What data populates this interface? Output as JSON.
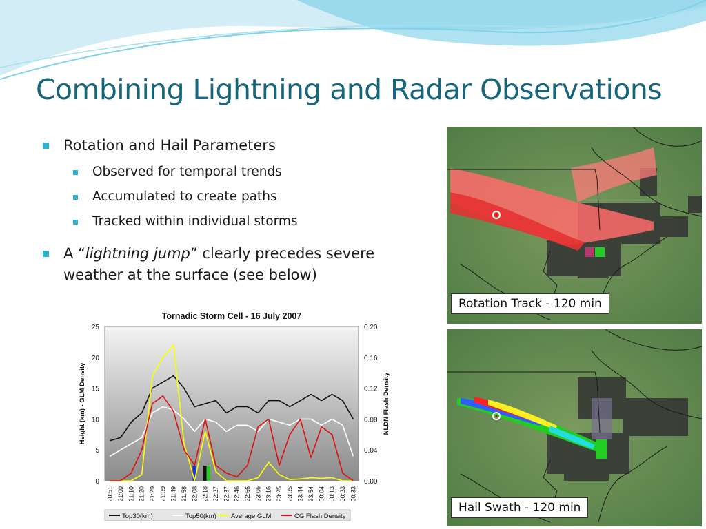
{
  "slide": {
    "title": "Combining Lightning and Radar Observations"
  },
  "bullets": {
    "b1": "Rotation and Hail Parameters",
    "b1_sub": [
      "Observed for temporal trends",
      "Accumulated to create paths",
      "Tracked within individual storms"
    ],
    "b2_prefix": "A “",
    "b2_italic": "lightning jump",
    "b2_suffix": "” clearly precedes severe weather at the surface (see below)"
  },
  "images": {
    "rotation_caption": "Rotation Track - 120 min",
    "hail_caption": "Hail Swath - 120 min"
  },
  "colors": {
    "title": "#17657a",
    "bullet": "#2ab2cf",
    "wave_light": "#bfe6f2",
    "wave_mid": "#6ccbe3",
    "map_green": "#5f8a4a"
  },
  "chart_data": {
    "type": "line",
    "title": "Tornadic Storm Cell - 16 July 2007",
    "ylabel_left": "Height (km) - GLM Density",
    "ylabel_right": "NLDN Flash Density",
    "ylim_left": [
      0,
      25
    ],
    "ylim_right": [
      0,
      0.2
    ],
    "yticks_left": [
      "0",
      "5",
      "10",
      "15",
      "20",
      "25"
    ],
    "yticks_right": [
      "0.00",
      "0.04",
      "0.08",
      "0.12",
      "0.16",
      "0.20"
    ],
    "categories": [
      "20:51",
      "21:00",
      "21:10",
      "21:20",
      "21:29",
      "21:39",
      "21:49",
      "21:58",
      "22:08",
      "22:18",
      "22:27",
      "22:37",
      "22:46",
      "22:56",
      "23:06",
      "23:16",
      "23:25",
      "23:35",
      "23:44",
      "23:54",
      "00:04",
      "00:13",
      "00:23",
      "00:33"
    ],
    "legend_position": "bottom",
    "series": [
      {
        "name": "Top30(km)",
        "color": "#111111",
        "axis": "left",
        "values": [
          6.5,
          7,
          9.5,
          11,
          15,
          16,
          17,
          15,
          12,
          12.5,
          13,
          11,
          12,
          12,
          11,
          13,
          13,
          12,
          13,
          14,
          13,
          14,
          13,
          10
        ]
      },
      {
        "name": "Top50(km)",
        "color": "#ffffff",
        "axis": "left",
        "values": [
          4,
          5,
          6,
          7,
          11,
          12,
          11.5,
          10,
          8,
          10,
          9.5,
          8,
          9,
          9,
          8,
          10,
          9.5,
          9,
          10,
          10,
          9,
          10,
          9,
          4
        ]
      },
      {
        "name": "Average GLM",
        "color": "#ffff00",
        "axis": "left",
        "values": [
          0,
          0,
          0,
          1,
          17,
          20,
          22,
          6,
          0,
          8,
          1.5,
          0,
          0,
          0,
          0.5,
          3,
          1,
          0.2,
          0.3,
          0.5,
          0.4,
          0.5,
          0,
          0
        ]
      },
      {
        "name": "CG Flash Density",
        "color": "#dd1111",
        "axis": "right",
        "values": [
          0,
          0,
          0.01,
          0.04,
          0.1,
          0.11,
          0.09,
          0.04,
          0.02,
          0.08,
          0.02,
          0.01,
          0.005,
          0.02,
          0.07,
          0.08,
          0.02,
          0.06,
          0.08,
          0.03,
          0.07,
          0.06,
          0.01,
          0
        ]
      }
    ],
    "markers": [
      {
        "at": "22:08",
        "color": "#1f33dd"
      },
      {
        "at": "22:18",
        "color": "#111111"
      },
      {
        "at": "22:18",
        "color": "#22cc22"
      }
    ]
  }
}
